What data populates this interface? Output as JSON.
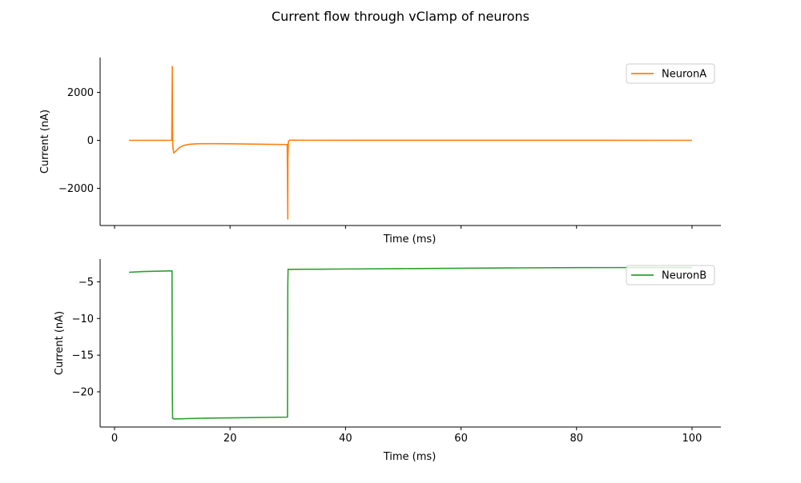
{
  "figure": {
    "title": "Current flow through vClamp of neurons"
  },
  "chart_data": [
    {
      "type": "line",
      "title": "",
      "xlabel": "Time (ms)",
      "ylabel": "Current (nA)",
      "xlim": [
        -2.5,
        105
      ],
      "ylim": [
        -3550,
        3450
      ],
      "x_ticks": [
        0,
        20,
        40,
        60,
        80,
        100
      ],
      "x_tick_labels_visible": false,
      "y_ticks": [
        -2000,
        0,
        2000
      ],
      "y_tick_labels": [
        "−2000",
        "0",
        "2000"
      ],
      "legend_position": "top-right",
      "grid": false,
      "series": [
        {
          "name": "NeuronA",
          "color": "#ff7f0e",
          "x": [
            2.5,
            9.9,
            10.0,
            10.02,
            10.1,
            10.25,
            10.5,
            11,
            11.5,
            12,
            13,
            14,
            15,
            17,
            20,
            25,
            29.9,
            30.0,
            30.02,
            30.1,
            30.3,
            31,
            40,
            60,
            80,
            100
          ],
          "y": [
            0,
            0,
            3100,
            800,
            -300,
            -520,
            -480,
            -350,
            -260,
            -210,
            -165,
            -148,
            -140,
            -138,
            -145,
            -160,
            -175,
            -3300,
            -800,
            -40,
            5,
            5,
            3,
            2,
            1,
            0
          ]
        }
      ]
    },
    {
      "type": "line",
      "title": "",
      "xlabel": "Time (ms)",
      "ylabel": "Current (nA)",
      "xlim": [
        -2.5,
        105
      ],
      "ylim": [
        -24.8,
        -1.9
      ],
      "x_ticks": [
        0,
        20,
        40,
        60,
        80,
        100
      ],
      "x_tick_labels": [
        "0",
        "20",
        "40",
        "60",
        "80",
        "100"
      ],
      "y_ticks": [
        -20,
        -15,
        -10,
        -5
      ],
      "y_tick_labels": [
        "−20",
        "−15",
        "−10",
        "−5"
      ],
      "legend_position": "top-right",
      "grid": false,
      "series": [
        {
          "name": "NeuronB",
          "color": "#2ca02c",
          "x": [
            2.5,
            5,
            9.95,
            10.0,
            10.05,
            10.3,
            15,
            20,
            29.95,
            30.0,
            30.05,
            30.3,
            35,
            40,
            50,
            60,
            70,
            80,
            90,
            100
          ],
          "y": [
            -3.7,
            -3.6,
            -3.5,
            -20.0,
            -23.6,
            -23.7,
            -23.6,
            -23.55,
            -23.45,
            -5.5,
            -3.3,
            -3.3,
            -3.28,
            -3.25,
            -3.2,
            -3.15,
            -3.1,
            -3.07,
            -3.05,
            -3.05
          ]
        }
      ]
    }
  ]
}
